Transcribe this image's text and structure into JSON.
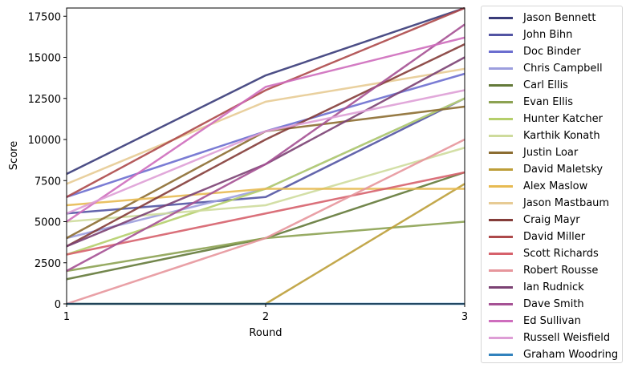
{
  "chart_data": {
    "type": "line",
    "title": "",
    "xlabel": "Round",
    "ylabel": "Score",
    "x": [
      1,
      2,
      3
    ],
    "xlim": [
      1,
      3
    ],
    "ylim": [
      0,
      18000
    ],
    "xticks": [
      "1",
      "2",
      "3"
    ],
    "yticks": [
      "0",
      "2500",
      "5000",
      "7500",
      "10000",
      "12500",
      "15000",
      "17500"
    ],
    "grid": false,
    "legend_position": "outside right, upper",
    "series": [
      {
        "name": "Jason Bennett",
        "color": "#393b79",
        "values": [
          7900,
          13900,
          18000
        ]
      },
      {
        "name": "John Bihn",
        "color": "#5254a3",
        "values": [
          5500,
          6500,
          12500
        ]
      },
      {
        "name": "Doc Binder",
        "color": "#6b6ecf",
        "values": [
          6500,
          10500,
          14000
        ]
      },
      {
        "name": "Chris Campbell",
        "color": "#9c9ede",
        "values": [
          4000,
          7000,
          12500
        ]
      },
      {
        "name": "Carl Ellis",
        "color": "#637939",
        "values": [
          1500,
          4000,
          8000
        ]
      },
      {
        "name": "Evan Ellis",
        "color": "#8ca252",
        "values": [
          2000,
          4000,
          5000
        ]
      },
      {
        "name": "Hunter Katcher",
        "color": "#b5cf6b",
        "values": [
          3000,
          7000,
          12500
        ]
      },
      {
        "name": "Karthik Konath",
        "color": "#cedb9c",
        "values": [
          5000,
          6000,
          9500
        ]
      },
      {
        "name": "Justin Loar",
        "color": "#8c6d31",
        "values": [
          4000,
          10500,
          12000
        ]
      },
      {
        "name": "David Maletsky",
        "color": "#bd9e39",
        "values": [
          0,
          0,
          7300
        ]
      },
      {
        "name": "Alex Maslow",
        "color": "#e7ba52",
        "values": [
          6000,
          7000,
          7000
        ]
      },
      {
        "name": "Jason Mastbaum",
        "color": "#e7cb94",
        "values": [
          7300,
          12300,
          14300
        ]
      },
      {
        "name": "Craig Mayr",
        "color": "#843c39",
        "values": [
          3500,
          10000,
          15800
        ]
      },
      {
        "name": "David Miller",
        "color": "#ad494a",
        "values": [
          6500,
          13000,
          18000
        ]
      },
      {
        "name": "Scott Richards",
        "color": "#d6616b",
        "values": [
          3000,
          5500,
          8000
        ]
      },
      {
        "name": "Robert Rousse",
        "color": "#e7969c",
        "values": [
          0,
          4000,
          10000
        ]
      },
      {
        "name": "Ian Rudnick",
        "color": "#7b4173",
        "values": [
          3500,
          8500,
          15000
        ]
      },
      {
        "name": "Dave Smith",
        "color": "#a55194",
        "values": [
          2000,
          8500,
          17000
        ]
      },
      {
        "name": "Ed Sullivan",
        "color": "#ce6dbd",
        "values": [
          5000,
          13200,
          16200
        ]
      },
      {
        "name": "Russell Weisfield",
        "color": "#de9ed6",
        "values": [
          5500,
          10500,
          13000
        ]
      },
      {
        "name": "Graham Woodring",
        "color": "#3182bd",
        "values": [
          0,
          0,
          0
        ]
      }
    ]
  }
}
